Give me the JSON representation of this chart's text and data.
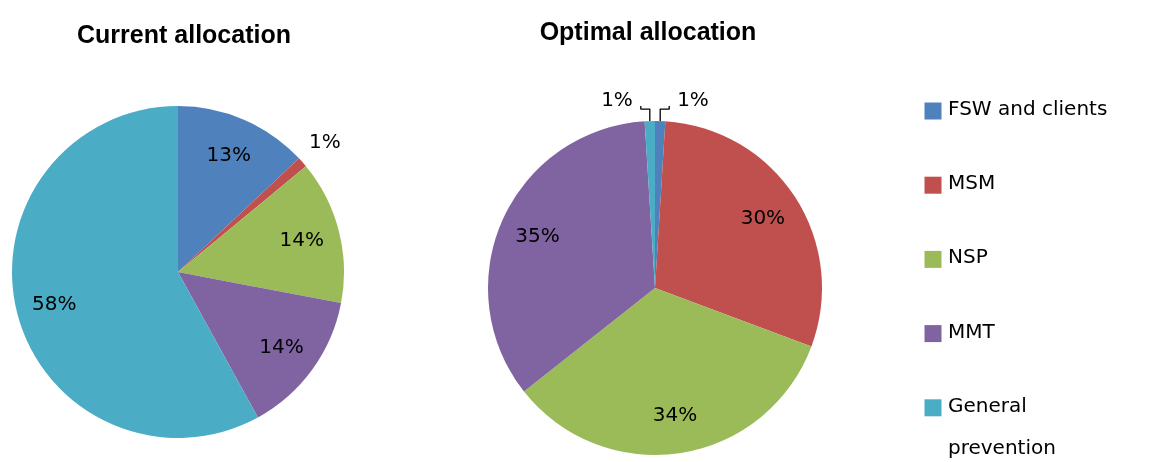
{
  "chart_data": [
    {
      "type": "pie",
      "title": "Current allocation",
      "categories": [
        "FSW and clients",
        "MSM",
        "NSP",
        "MMT",
        "General prevention"
      ],
      "values": [
        13,
        1,
        14,
        14,
        58
      ],
      "colors": [
        "#4f81bd",
        "#c0504d",
        "#9bbb59",
        "#8064a2",
        "#4bacc6"
      ],
      "value_labels": [
        "13%",
        "1%",
        "14%",
        "14%",
        "58%"
      ],
      "legend": "right"
    },
    {
      "type": "pie",
      "title": "Optimal allocation",
      "categories": [
        null,
        null,
        null,
        null,
        null
      ],
      "values": [
        1,
        30,
        34,
        35,
        1
      ],
      "colors": [
        "#4f81bd",
        "#c0504d",
        "#9bbb59",
        "#8064a2",
        "#4bacc6"
      ],
      "value_labels": [
        "1%",
        "30%",
        "34%",
        "35%",
        "1%"
      ]
    }
  ]
}
